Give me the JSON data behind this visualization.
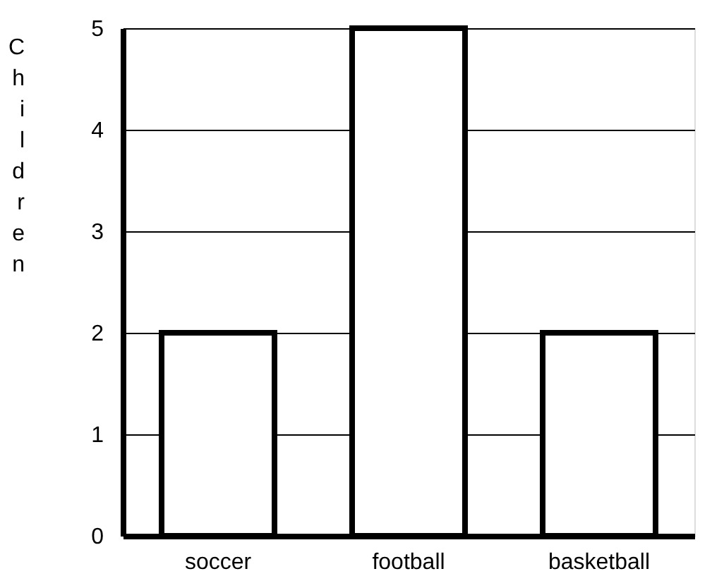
{
  "chart_data": {
    "type": "bar",
    "ylabel": "Children",
    "categories": [
      "soccer",
      "football",
      "basketball"
    ],
    "values": [
      2,
      5,
      2
    ],
    "color": "#000000",
    "ylim": [
      0,
      5
    ],
    "yticks": [
      0,
      1,
      2,
      3,
      4,
      5
    ],
    "grid": "y"
  }
}
